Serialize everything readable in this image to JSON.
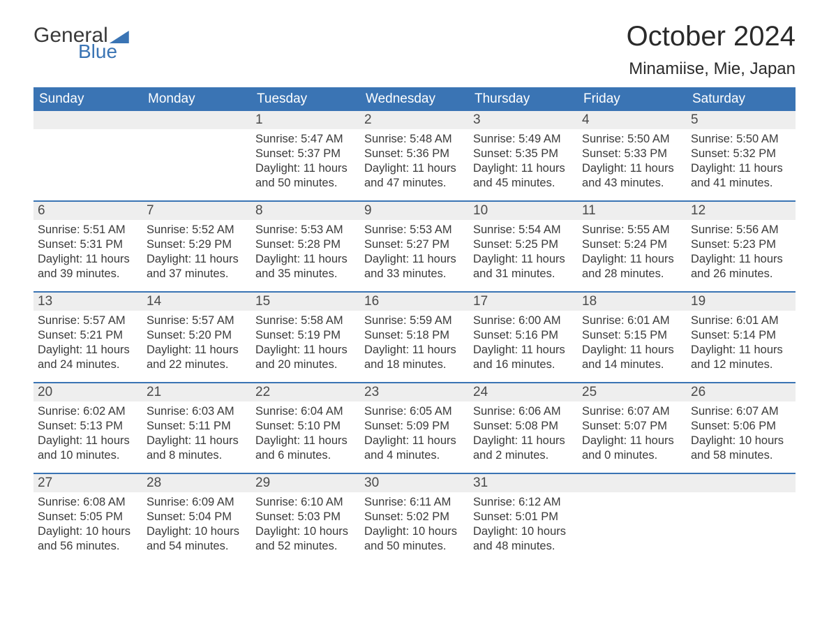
{
  "logo": {
    "line1": "General",
    "line2": "Blue"
  },
  "title": "October 2024",
  "location": "Minamiise, Mie, Japan",
  "colors": {
    "header_bg": "#3a74b4",
    "header_text": "#ffffff",
    "daynum_bg": "#eeeeee",
    "text": "#3a3a3a",
    "week_border": "#3a74b4",
    "logo_blue": "#3a74b4"
  },
  "weekdays": [
    "Sunday",
    "Monday",
    "Tuesday",
    "Wednesday",
    "Thursday",
    "Friday",
    "Saturday"
  ],
  "weeks": [
    [
      {
        "num": "",
        "sunrise": "",
        "sunset": "",
        "daylight": ""
      },
      {
        "num": "",
        "sunrise": "",
        "sunset": "",
        "daylight": ""
      },
      {
        "num": "1",
        "sunrise": "5:47 AM",
        "sunset": "5:37 PM",
        "daylight": "11 hours and 50 minutes."
      },
      {
        "num": "2",
        "sunrise": "5:48 AM",
        "sunset": "5:36 PM",
        "daylight": "11 hours and 47 minutes."
      },
      {
        "num": "3",
        "sunrise": "5:49 AM",
        "sunset": "5:35 PM",
        "daylight": "11 hours and 45 minutes."
      },
      {
        "num": "4",
        "sunrise": "5:50 AM",
        "sunset": "5:33 PM",
        "daylight": "11 hours and 43 minutes."
      },
      {
        "num": "5",
        "sunrise": "5:50 AM",
        "sunset": "5:32 PM",
        "daylight": "11 hours and 41 minutes."
      }
    ],
    [
      {
        "num": "6",
        "sunrise": "5:51 AM",
        "sunset": "5:31 PM",
        "daylight": "11 hours and 39 minutes."
      },
      {
        "num": "7",
        "sunrise": "5:52 AM",
        "sunset": "5:29 PM",
        "daylight": "11 hours and 37 minutes."
      },
      {
        "num": "8",
        "sunrise": "5:53 AM",
        "sunset": "5:28 PM",
        "daylight": "11 hours and 35 minutes."
      },
      {
        "num": "9",
        "sunrise": "5:53 AM",
        "sunset": "5:27 PM",
        "daylight": "11 hours and 33 minutes."
      },
      {
        "num": "10",
        "sunrise": "5:54 AM",
        "sunset": "5:25 PM",
        "daylight": "11 hours and 31 minutes."
      },
      {
        "num": "11",
        "sunrise": "5:55 AM",
        "sunset": "5:24 PM",
        "daylight": "11 hours and 28 minutes."
      },
      {
        "num": "12",
        "sunrise": "5:56 AM",
        "sunset": "5:23 PM",
        "daylight": "11 hours and 26 minutes."
      }
    ],
    [
      {
        "num": "13",
        "sunrise": "5:57 AM",
        "sunset": "5:21 PM",
        "daylight": "11 hours and 24 minutes."
      },
      {
        "num": "14",
        "sunrise": "5:57 AM",
        "sunset": "5:20 PM",
        "daylight": "11 hours and 22 minutes."
      },
      {
        "num": "15",
        "sunrise": "5:58 AM",
        "sunset": "5:19 PM",
        "daylight": "11 hours and 20 minutes."
      },
      {
        "num": "16",
        "sunrise": "5:59 AM",
        "sunset": "5:18 PM",
        "daylight": "11 hours and 18 minutes."
      },
      {
        "num": "17",
        "sunrise": "6:00 AM",
        "sunset": "5:16 PM",
        "daylight": "11 hours and 16 minutes."
      },
      {
        "num": "18",
        "sunrise": "6:01 AM",
        "sunset": "5:15 PM",
        "daylight": "11 hours and 14 minutes."
      },
      {
        "num": "19",
        "sunrise": "6:01 AM",
        "sunset": "5:14 PM",
        "daylight": "11 hours and 12 minutes."
      }
    ],
    [
      {
        "num": "20",
        "sunrise": "6:02 AM",
        "sunset": "5:13 PM",
        "daylight": "11 hours and 10 minutes."
      },
      {
        "num": "21",
        "sunrise": "6:03 AM",
        "sunset": "5:11 PM",
        "daylight": "11 hours and 8 minutes."
      },
      {
        "num": "22",
        "sunrise": "6:04 AM",
        "sunset": "5:10 PM",
        "daylight": "11 hours and 6 minutes."
      },
      {
        "num": "23",
        "sunrise": "6:05 AM",
        "sunset": "5:09 PM",
        "daylight": "11 hours and 4 minutes."
      },
      {
        "num": "24",
        "sunrise": "6:06 AM",
        "sunset": "5:08 PM",
        "daylight": "11 hours and 2 minutes."
      },
      {
        "num": "25",
        "sunrise": "6:07 AM",
        "sunset": "5:07 PM",
        "daylight": "11 hours and 0 minutes."
      },
      {
        "num": "26",
        "sunrise": "6:07 AM",
        "sunset": "5:06 PM",
        "daylight": "10 hours and 58 minutes."
      }
    ],
    [
      {
        "num": "27",
        "sunrise": "6:08 AM",
        "sunset": "5:05 PM",
        "daylight": "10 hours and 56 minutes."
      },
      {
        "num": "28",
        "sunrise": "6:09 AM",
        "sunset": "5:04 PM",
        "daylight": "10 hours and 54 minutes."
      },
      {
        "num": "29",
        "sunrise": "6:10 AM",
        "sunset": "5:03 PM",
        "daylight": "10 hours and 52 minutes."
      },
      {
        "num": "30",
        "sunrise": "6:11 AM",
        "sunset": "5:02 PM",
        "daylight": "10 hours and 50 minutes."
      },
      {
        "num": "31",
        "sunrise": "6:12 AM",
        "sunset": "5:01 PM",
        "daylight": "10 hours and 48 minutes."
      },
      {
        "num": "",
        "sunrise": "",
        "sunset": "",
        "daylight": ""
      },
      {
        "num": "",
        "sunrise": "",
        "sunset": "",
        "daylight": ""
      }
    ]
  ],
  "labels": {
    "sunrise": "Sunrise:",
    "sunset": "Sunset:",
    "daylight": "Daylight:"
  }
}
